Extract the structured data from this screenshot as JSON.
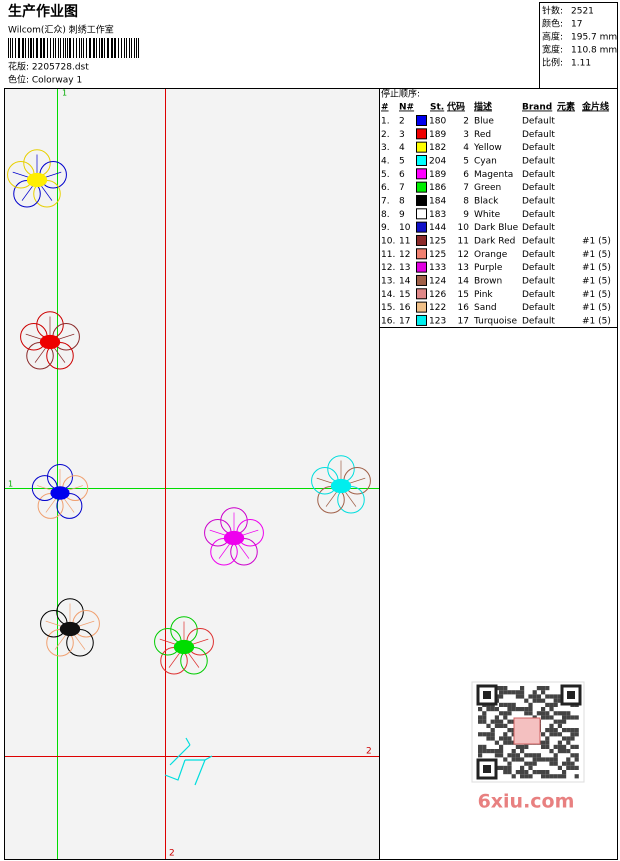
{
  "header": {
    "title": "生产作业图",
    "studio": "Wilcom(汇众) 刺绣工作室",
    "design": "花版: 2205728.dst",
    "colorway": "色位: Colorway 1"
  },
  "info": [
    {
      "label": "针数:",
      "value": "2521"
    },
    {
      "label": "颜色:",
      "value": "17"
    },
    {
      "label": "高度:",
      "value": "195.7 mm"
    },
    {
      "label": "宽度:",
      "value": "110.8 mm"
    },
    {
      "label": "比例:",
      "value": "1.11"
    }
  ],
  "design_area": {
    "guide_labels": [
      "1",
      "1",
      "2",
      "2"
    ]
  },
  "stop_sequence": {
    "title": "停止顺序:",
    "columns": [
      "#",
      "N#",
      "St.",
      "代码",
      "描述",
      "Brand",
      "元素",
      "金片线"
    ],
    "rows": [
      {
        "index": "1.",
        "n": "2",
        "color": "#0000ee",
        "st": "180",
        "code": "2",
        "desc": "Blue",
        "brand": "Default"
      },
      {
        "index": "2.",
        "n": "3",
        "color": "#ee0000",
        "st": "189",
        "code": "3",
        "desc": "Red",
        "brand": "Default"
      },
      {
        "index": "3.",
        "n": "4",
        "color": "#ffff00",
        "st": "182",
        "code": "4",
        "desc": "Yellow",
        "brand": "Default"
      },
      {
        "index": "4.",
        "n": "5",
        "color": "#00ffff",
        "st": "204",
        "code": "5",
        "desc": "Cyan",
        "brand": "Default"
      },
      {
        "index": "5.",
        "n": "6",
        "color": "#ff00ff",
        "st": "189",
        "code": "6",
        "desc": "Magenta",
        "brand": "Default"
      },
      {
        "index": "6.",
        "n": "7",
        "color": "#00ee00",
        "st": "186",
        "code": "7",
        "desc": "Green",
        "brand": "Default"
      },
      {
        "index": "7.",
        "n": "8",
        "color": "#000000",
        "st": "184",
        "code": "8",
        "desc": "Black",
        "brand": "Default"
      },
      {
        "index": "8.",
        "n": "9",
        "color": "#ffffff",
        "st": "183",
        "code": "9",
        "desc": "White",
        "brand": "Default"
      },
      {
        "index": "9.",
        "n": "10",
        "color": "#1010c8",
        "st": "144",
        "code": "10",
        "desc": "Dark Blue",
        "brand": "Default"
      },
      {
        "index": "10.",
        "n": "11",
        "color": "#8b2a2a",
        "st": "125",
        "code": "11",
        "desc": "Dark Red",
        "brand": "Default",
        "sequin": "#1 (5)"
      },
      {
        "index": "11.",
        "n": "12",
        "color": "#f08070",
        "st": "125",
        "code": "12",
        "desc": "Orange",
        "brand": "Default",
        "sequin": "#1 (5)"
      },
      {
        "index": "12.",
        "n": "13",
        "color": "#e000e0",
        "st": "133",
        "code": "13",
        "desc": "Purple",
        "brand": "Default",
        "sequin": "#1 (5)"
      },
      {
        "index": "13.",
        "n": "14",
        "color": "#a06048",
        "st": "124",
        "code": "14",
        "desc": "Brown",
        "brand": "Default",
        "sequin": "#1 (5)"
      },
      {
        "index": "14.",
        "n": "15",
        "color": "#e08888",
        "st": "126",
        "code": "15",
        "desc": "Pink",
        "brand": "Default",
        "sequin": "#1 (5)"
      },
      {
        "index": "15.",
        "n": "16",
        "color": "#f0c088",
        "st": "122",
        "code": "16",
        "desc": "Sand",
        "brand": "Default",
        "sequin": "#1 (5)"
      },
      {
        "index": "16.",
        "n": "17",
        "color": "#00eeee",
        "st": "123",
        "code": "17",
        "desc": "Turquoise",
        "brand": "Default",
        "sequin": "#1 (5)"
      }
    ]
  },
  "watermark": "6xiu.com"
}
